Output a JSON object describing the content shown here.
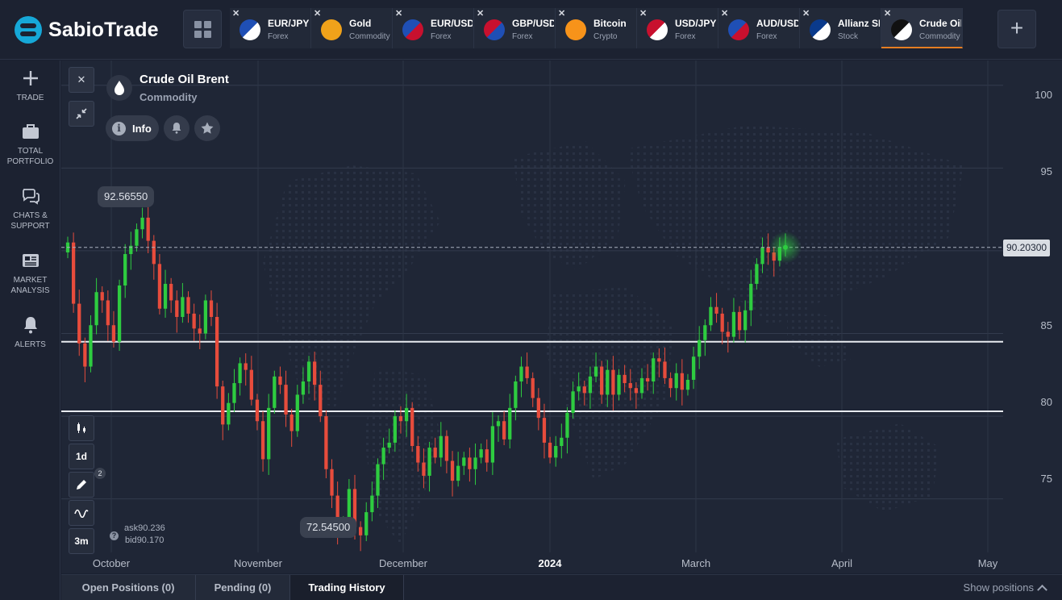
{
  "brand": {
    "name": "SabioTrade"
  },
  "tabs": [
    {
      "symbol": "EUR/JPY",
      "category": "Forex",
      "icon": "eu-jp-flags-icon",
      "colors": [
        "#1f4fb5",
        "#ffffff"
      ]
    },
    {
      "symbol": "Gold",
      "category": "Commodity",
      "icon": "gold-bars-icon",
      "colors": [
        "#f0a21a",
        "#f0a21a"
      ]
    },
    {
      "symbol": "EUR/USD",
      "category": "Forex",
      "icon": "eu-us-flags-icon",
      "colors": [
        "#1f4fb5",
        "#c8102e"
      ]
    },
    {
      "symbol": "GBP/USD",
      "category": "Forex",
      "icon": "gb-us-flags-icon",
      "colors": [
        "#c8102e",
        "#1f4fb5"
      ]
    },
    {
      "symbol": "Bitcoin",
      "category": "Crypto",
      "icon": "bitcoin-icon",
      "colors": [
        "#f7931a",
        "#f7931a"
      ]
    },
    {
      "symbol": "USD/JPY",
      "category": "Forex",
      "icon": "us-jp-flags-icon",
      "colors": [
        "#c8102e",
        "#ffffff"
      ]
    },
    {
      "symbol": "AUD/USD",
      "category": "Forex",
      "icon": "au-us-flags-icon",
      "colors": [
        "#1f4fb5",
        "#c8102e"
      ]
    },
    {
      "symbol": "Allianz SE",
      "category": "Stock",
      "icon": "allianz-logo-icon",
      "colors": [
        "#0a3a8c",
        "#ffffff"
      ]
    },
    {
      "symbol": "Crude Oil Br...",
      "category": "Commodity",
      "icon": "oil-drop-icon",
      "colors": [
        "#111111",
        "#ffffff"
      ],
      "active": true
    }
  ],
  "sidebar": {
    "items": [
      {
        "label": "TRADE",
        "icon": "plus-icon"
      },
      {
        "label": "TOTAL PORTFOLIO",
        "icon": "briefcase-icon"
      },
      {
        "label": "CHATS & SUPPORT",
        "icon": "chat-bubbles-icon"
      },
      {
        "label": "MARKET ANALYSIS",
        "icon": "newspaper-icon"
      },
      {
        "label": "ALERTS",
        "icon": "bell-icon"
      }
    ]
  },
  "asset": {
    "name": "Crude Oil Brent",
    "category": "Commodity",
    "info_label": "Info"
  },
  "quote": {
    "ask_label": "ask",
    "ask": "90.236",
    "bid_label": "bid",
    "bid": "90.170",
    "last": "90.20300",
    "high_label": "92.56550",
    "low_label": "72.54500"
  },
  "toolbar": {
    "timeframe": "1d",
    "range": "3m",
    "drawings_count": "2"
  },
  "chart_data": {
    "type": "candlestick",
    "ylim": [
      70.5,
      101.5
    ],
    "y_ticks": [
      75,
      80,
      85,
      90,
      95,
      100
    ],
    "y_tick_labels": [
      "75",
      "80",
      "85",
      "95",
      "100"
    ],
    "x_ticks": [
      "October",
      "November",
      "December",
      "2024",
      "March",
      "April",
      "May"
    ],
    "horizontal_levels": [
      84.5,
      80.3
    ],
    "last_price": 90.203,
    "high": 92.5655,
    "low": 72.545,
    "candles_start": "2023-09-27",
    "closes": [
      90.5,
      86.8,
      84.4,
      83.0,
      85.5,
      87.5,
      87.0,
      85.5,
      84.5,
      87.9,
      89.8,
      90.3,
      91.3,
      92.0,
      90.6,
      89.2,
      86.5,
      88.0,
      87.0,
      86.0,
      87.2,
      86.2,
      85.3,
      85.0,
      87.0,
      86.0,
      81.8,
      79.5,
      80.8,
      82.0,
      83.2,
      82.8,
      81.0,
      79.7,
      77.4,
      80.5,
      82.4,
      81.9,
      80.1,
      79.1,
      81.3,
      82.1,
      83.3,
      81.9,
      80.0,
      76.8,
      75.2,
      73.2,
      73.6,
      75.6,
      73.3,
      72.8,
      74.2,
      75.2,
      77.1,
      78.1,
      78.4,
      80.0,
      79.7,
      80.5,
      78.2,
      77.2,
      76.4,
      78.1,
      77.5,
      78.8,
      77.3,
      76.1,
      77.0,
      77.5,
      76.8,
      77.5,
      78.0,
      77.2,
      79.4,
      79.7,
      78.6,
      80.5,
      82.1,
      83.0,
      82.3,
      81.1,
      79.9,
      78.4,
      77.5,
      78.2,
      78.7,
      80.2,
      81.5,
      81.8,
      81.4,
      82.4,
      83.0,
      81.3,
      82.8,
      81.3,
      82.5,
      82.0,
      81.7,
      81.4,
      82.3,
      82.1,
      83.5,
      83.3,
      82.3,
      81.7,
      82.6,
      81.6,
      82.2,
      83.6,
      84.6,
      85.5,
      86.6,
      86.2,
      85.1,
      84.8,
      86.3,
      85.2,
      86.4,
      88.0,
      89.2,
      90.2,
      89.9,
      89.4,
      90.2,
      90.203
    ]
  }
}
